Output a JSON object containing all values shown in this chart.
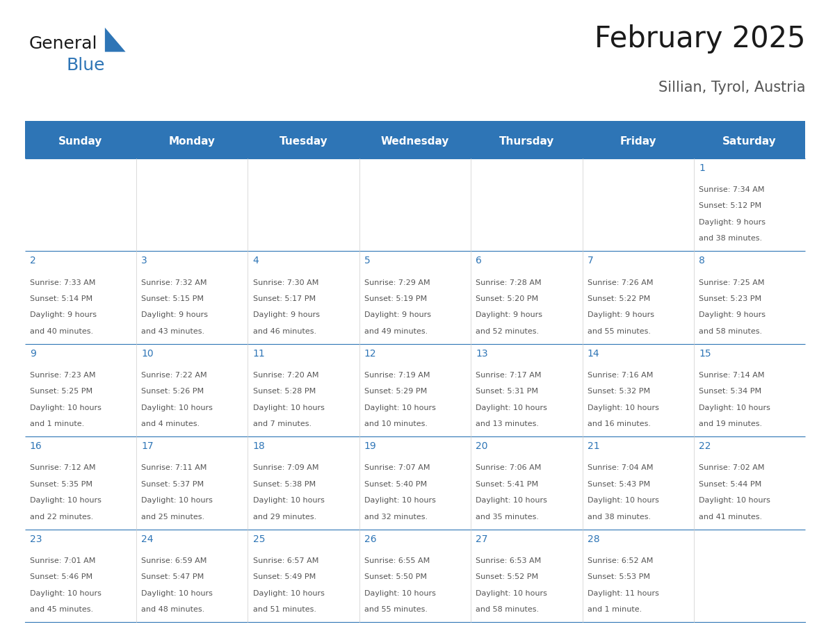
{
  "title": "February 2025",
  "subtitle": "Sillian, Tyrol, Austria",
  "header_color": "#2E75B6",
  "header_text_color": "#FFFFFF",
  "cell_bg_color": "#FFFFFF",
  "border_color": "#2E75B6",
  "day_number_color": "#2E75B6",
  "cell_text_color": "#555555",
  "days_of_week": [
    "Sunday",
    "Monday",
    "Tuesday",
    "Wednesday",
    "Thursday",
    "Friday",
    "Saturday"
  ],
  "logo_color": "#2E75B6",
  "logo_dark_color": "#1a1a1a",
  "title_color": "#1a1a1a",
  "subtitle_color": "#555555",
  "calendar_data": [
    [
      null,
      null,
      null,
      null,
      null,
      null,
      {
        "day": "1",
        "sunrise": "7:34 AM",
        "sunset": "5:12 PM",
        "daylight1": "9 hours",
        "daylight2": "and 38 minutes."
      }
    ],
    [
      {
        "day": "2",
        "sunrise": "7:33 AM",
        "sunset": "5:14 PM",
        "daylight1": "9 hours",
        "daylight2": "and 40 minutes."
      },
      {
        "day": "3",
        "sunrise": "7:32 AM",
        "sunset": "5:15 PM",
        "daylight1": "9 hours",
        "daylight2": "and 43 minutes."
      },
      {
        "day": "4",
        "sunrise": "7:30 AM",
        "sunset": "5:17 PM",
        "daylight1": "9 hours",
        "daylight2": "and 46 minutes."
      },
      {
        "day": "5",
        "sunrise": "7:29 AM",
        "sunset": "5:19 PM",
        "daylight1": "9 hours",
        "daylight2": "and 49 minutes."
      },
      {
        "day": "6",
        "sunrise": "7:28 AM",
        "sunset": "5:20 PM",
        "daylight1": "9 hours",
        "daylight2": "and 52 minutes."
      },
      {
        "day": "7",
        "sunrise": "7:26 AM",
        "sunset": "5:22 PM",
        "daylight1": "9 hours",
        "daylight2": "and 55 minutes."
      },
      {
        "day": "8",
        "sunrise": "7:25 AM",
        "sunset": "5:23 PM",
        "daylight1": "9 hours",
        "daylight2": "and 58 minutes."
      }
    ],
    [
      {
        "day": "9",
        "sunrise": "7:23 AM",
        "sunset": "5:25 PM",
        "daylight1": "10 hours",
        "daylight2": "and 1 minute."
      },
      {
        "day": "10",
        "sunrise": "7:22 AM",
        "sunset": "5:26 PM",
        "daylight1": "10 hours",
        "daylight2": "and 4 minutes."
      },
      {
        "day": "11",
        "sunrise": "7:20 AM",
        "sunset": "5:28 PM",
        "daylight1": "10 hours",
        "daylight2": "and 7 minutes."
      },
      {
        "day": "12",
        "sunrise": "7:19 AM",
        "sunset": "5:29 PM",
        "daylight1": "10 hours",
        "daylight2": "and 10 minutes."
      },
      {
        "day": "13",
        "sunrise": "7:17 AM",
        "sunset": "5:31 PM",
        "daylight1": "10 hours",
        "daylight2": "and 13 minutes."
      },
      {
        "day": "14",
        "sunrise": "7:16 AM",
        "sunset": "5:32 PM",
        "daylight1": "10 hours",
        "daylight2": "and 16 minutes."
      },
      {
        "day": "15",
        "sunrise": "7:14 AM",
        "sunset": "5:34 PM",
        "daylight1": "10 hours",
        "daylight2": "and 19 minutes."
      }
    ],
    [
      {
        "day": "16",
        "sunrise": "7:12 AM",
        "sunset": "5:35 PM",
        "daylight1": "10 hours",
        "daylight2": "and 22 minutes."
      },
      {
        "day": "17",
        "sunrise": "7:11 AM",
        "sunset": "5:37 PM",
        "daylight1": "10 hours",
        "daylight2": "and 25 minutes."
      },
      {
        "day": "18",
        "sunrise": "7:09 AM",
        "sunset": "5:38 PM",
        "daylight1": "10 hours",
        "daylight2": "and 29 minutes."
      },
      {
        "day": "19",
        "sunrise": "7:07 AM",
        "sunset": "5:40 PM",
        "daylight1": "10 hours",
        "daylight2": "and 32 minutes."
      },
      {
        "day": "20",
        "sunrise": "7:06 AM",
        "sunset": "5:41 PM",
        "daylight1": "10 hours",
        "daylight2": "and 35 minutes."
      },
      {
        "day": "21",
        "sunrise": "7:04 AM",
        "sunset": "5:43 PM",
        "daylight1": "10 hours",
        "daylight2": "and 38 minutes."
      },
      {
        "day": "22",
        "sunrise": "7:02 AM",
        "sunset": "5:44 PM",
        "daylight1": "10 hours",
        "daylight2": "and 41 minutes."
      }
    ],
    [
      {
        "day": "23",
        "sunrise": "7:01 AM",
        "sunset": "5:46 PM",
        "daylight1": "10 hours",
        "daylight2": "and 45 minutes."
      },
      {
        "day": "24",
        "sunrise": "6:59 AM",
        "sunset": "5:47 PM",
        "daylight1": "10 hours",
        "daylight2": "and 48 minutes."
      },
      {
        "day": "25",
        "sunrise": "6:57 AM",
        "sunset": "5:49 PM",
        "daylight1": "10 hours",
        "daylight2": "and 51 minutes."
      },
      {
        "day": "26",
        "sunrise": "6:55 AM",
        "sunset": "5:50 PM",
        "daylight1": "10 hours",
        "daylight2": "and 55 minutes."
      },
      {
        "day": "27",
        "sunrise": "6:53 AM",
        "sunset": "5:52 PM",
        "daylight1": "10 hours",
        "daylight2": "and 58 minutes."
      },
      {
        "day": "28",
        "sunrise": "6:52 AM",
        "sunset": "5:53 PM",
        "daylight1": "11 hours",
        "daylight2": "and 1 minute."
      },
      null
    ]
  ],
  "fig_width": 11.88,
  "fig_height": 9.18,
  "dpi": 100
}
